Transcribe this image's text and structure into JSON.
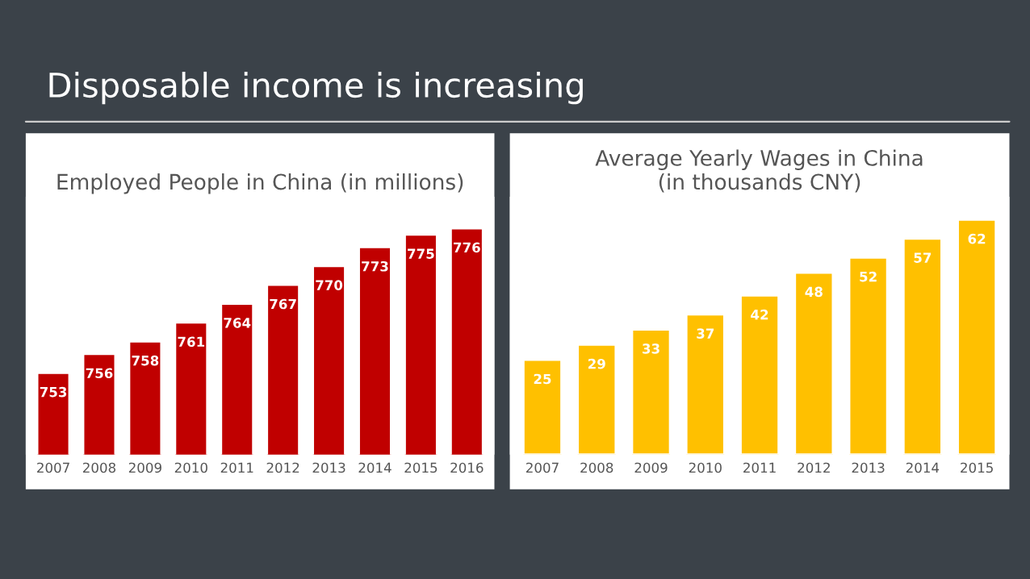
{
  "chart_data": [
    {
      "type": "bar",
      "title": "Employed People in China (in millions)",
      "annotations": [
        "Disposable income is increasing"
      ],
      "categories": [
        "2007",
        "2008",
        "2009",
        "2010",
        "2011",
        "2012",
        "2013",
        "2014",
        "2015",
        "2016"
      ],
      "values": [
        753,
        756,
        758,
        761,
        764,
        767,
        770,
        773,
        775,
        776
      ],
      "color": "#c00000",
      "ylim": [
        740,
        781
      ],
      "tick_labels": "x",
      "data_labels": true,
      "grid": false,
      "legend": false
    },
    {
      "type": "bar",
      "title": "Average Yearly Wages in China\n(in thousands CNY)",
      "categories": [
        "2007",
        "2008",
        "2009",
        "2010",
        "2011",
        "2012",
        "2013",
        "2014",
        "2015"
      ],
      "values": [
        25,
        29,
        33,
        37,
        42,
        48,
        52,
        57,
        62
      ],
      "color": "#ffc000",
      "ylim": [
        0,
        68
      ],
      "tick_labels": "x",
      "data_labels": true,
      "grid": false,
      "legend": false
    }
  ]
}
